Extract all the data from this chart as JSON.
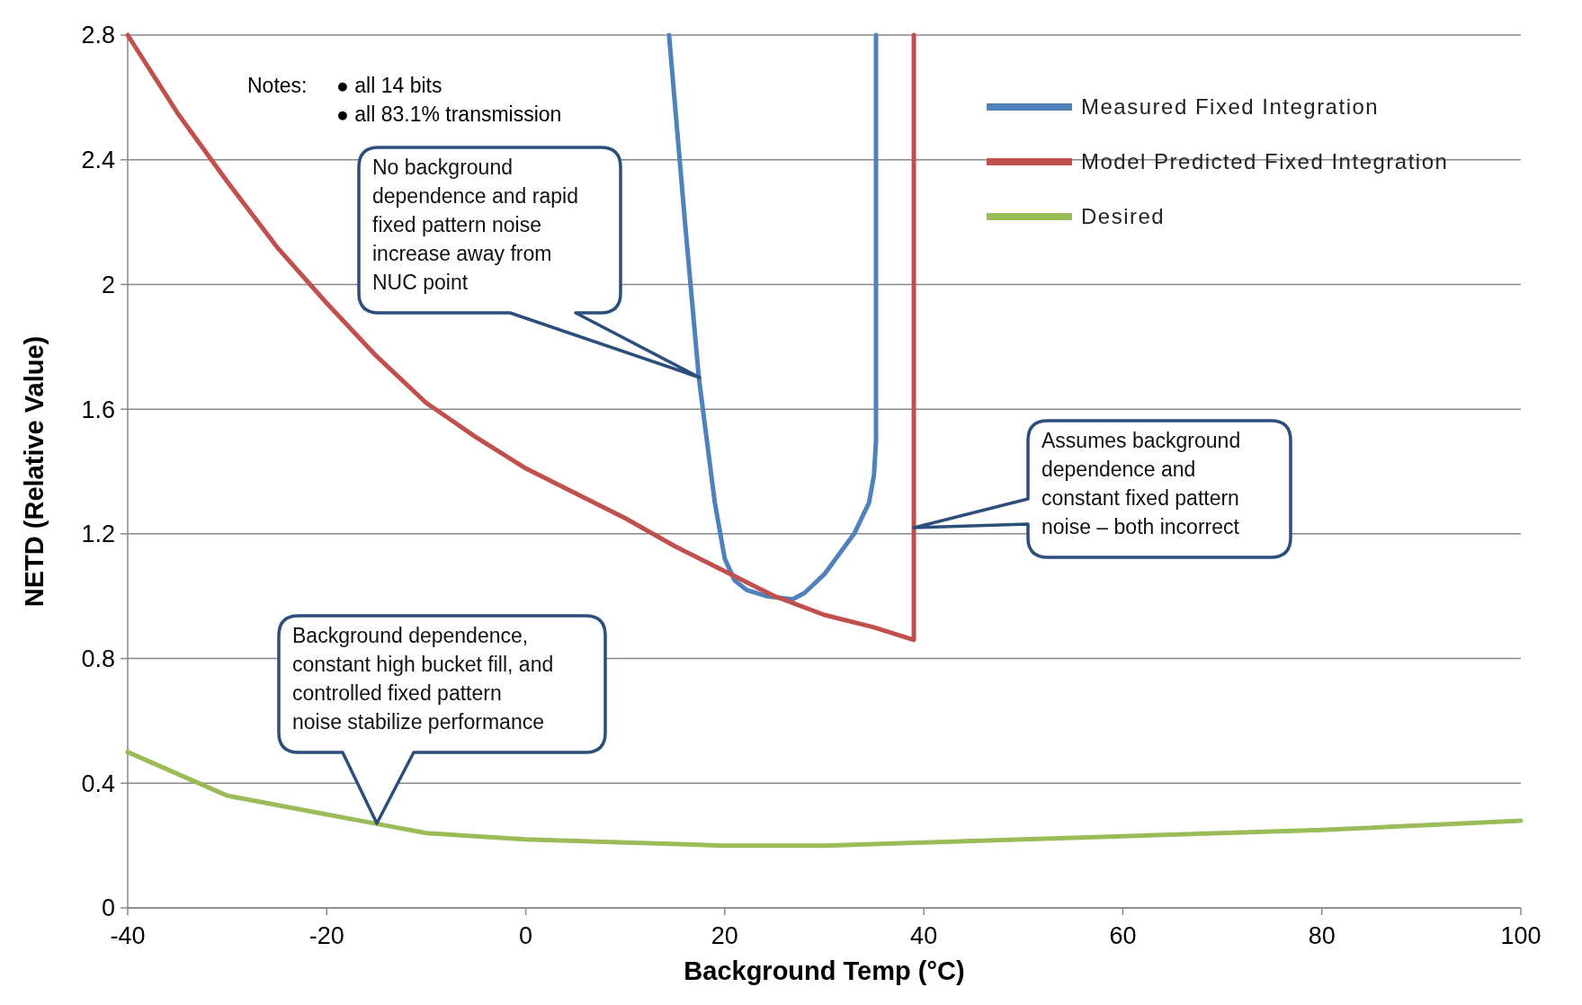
{
  "chart_data": {
    "type": "line",
    "xlabel": "Background Temp (°C)",
    "ylabel": "NETD (Relative Value)",
    "xlim": [
      -40,
      100
    ],
    "xticks": [
      -40,
      -20,
      0,
      20,
      40,
      60,
      80,
      100
    ],
    "ylim": [
      0,
      2.8
    ],
    "yticks": [
      0,
      0.4,
      0.8,
      1.2,
      1.6,
      2,
      2.4,
      2.8
    ],
    "grid": "y",
    "legend": "top right",
    "line_style": "solid",
    "marker": "none",
    "series": [
      {
        "name": "Measured Fixed Integration",
        "color": "#4f81bd",
        "x": [
          14.4,
          16,
          17.4,
          19,
          20,
          21,
          22.2,
          24.2,
          26.8,
          28,
          30,
          33,
          34.5,
          35,
          35.2,
          35.2
        ],
        "values": [
          2.8,
          2.2,
          1.7,
          1.3,
          1.12,
          1.05,
          1.02,
          1.0,
          0.99,
          1.01,
          1.07,
          1.2,
          1.3,
          1.39,
          1.5,
          2.8
        ]
      },
      {
        "name": "Model Predicted Fixed Integration",
        "color": "#c0504d",
        "x": [
          -40,
          -35,
          -30,
          -25,
          -20,
          -15,
          -10,
          -5,
          0,
          5,
          10,
          15,
          20,
          25,
          30,
          35,
          39,
          39
        ],
        "values": [
          2.8,
          2.55,
          2.33,
          2.12,
          1.94,
          1.77,
          1.62,
          1.51,
          1.41,
          1.33,
          1.25,
          1.16,
          1.08,
          1.0,
          0.94,
          0.9,
          0.86,
          2.8
        ]
      },
      {
        "name": "Desired",
        "color": "#9bbb59",
        "x": [
          -40,
          -30,
          -20,
          -15,
          -10,
          0,
          10,
          20,
          30,
          40,
          60,
          80,
          100
        ],
        "values": [
          0.5,
          0.36,
          0.3,
          0.27,
          0.24,
          0.22,
          0.21,
          0.2,
          0.2,
          0.21,
          0.23,
          0.25,
          0.28
        ]
      }
    ],
    "annotations": [
      "Notes:",
      "● all 14 bits",
      "● all 83.1% transmission",
      "No background\ndependence and rapid\nfixed pattern noise\nincrease away from\nNUC point",
      "Assumes background\ndependence and\nconstant fixed pattern\nnoise – both incorrect",
      "Background dependence,\nconstant high bucket fill, and\ncontrolled fixed pattern\nnoise stabilize performance"
    ]
  }
}
